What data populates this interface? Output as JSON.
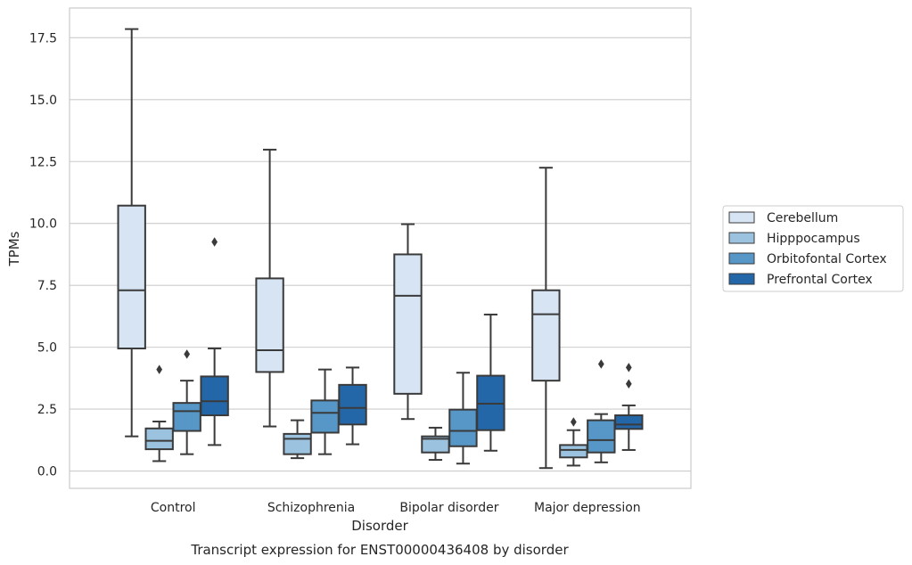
{
  "chart_data": {
    "type": "box",
    "title": "",
    "caption": "Transcript expression for ENST00000436408 by disorder",
    "xlabel": "Disorder",
    "ylabel": "TPMs",
    "ylim": [
      -0.7,
      18.7
    ],
    "yticks": [
      0.0,
      2.5,
      5.0,
      7.5,
      10.0,
      12.5,
      15.0,
      17.5
    ],
    "ytick_labels": [
      "0.0",
      "2.5",
      "5.0",
      "7.5",
      "10.0",
      "12.5",
      "15.0",
      "17.5"
    ],
    "grid": "horizontal",
    "legend_position": "right",
    "categories": [
      "Control",
      "Schizophrenia",
      "Bipolar disorder",
      "Major depression"
    ],
    "series": [
      {
        "name": "Cerebellum",
        "color": "#d6e4f3",
        "boxes": [
          {
            "whisker_low": 1.4,
            "q1": 4.95,
            "median": 7.3,
            "q3": 10.72,
            "whisker_high": 17.85,
            "outliers": []
          },
          {
            "whisker_low": 1.8,
            "q1": 4.0,
            "median": 4.88,
            "q3": 7.78,
            "whisker_high": 12.98,
            "outliers": []
          },
          {
            "whisker_low": 2.1,
            "q1": 3.12,
            "median": 7.08,
            "q3": 8.75,
            "whisker_high": 9.97,
            "outliers": []
          },
          {
            "whisker_low": 0.12,
            "q1": 3.65,
            "median": 6.33,
            "q3": 7.3,
            "whisker_high": 12.25,
            "outliers": []
          }
        ]
      },
      {
        "name": "Hipppocampus",
        "color": "#9bc3df",
        "boxes": [
          {
            "whisker_low": 0.4,
            "q1": 0.88,
            "median": 1.22,
            "q3": 1.72,
            "whisker_high": 2.0,
            "outliers": [
              4.1
            ]
          },
          {
            "whisker_low": 0.52,
            "q1": 0.68,
            "median": 1.3,
            "q3": 1.5,
            "whisker_high": 2.05,
            "outliers": []
          },
          {
            "whisker_low": 0.45,
            "q1": 0.75,
            "median": 1.3,
            "q3": 1.4,
            "whisker_high": 1.75,
            "outliers": []
          },
          {
            "whisker_low": 0.22,
            "q1": 0.55,
            "median": 0.85,
            "q3": 1.05,
            "whisker_high": 1.65,
            "outliers": [
              1.98
            ]
          }
        ]
      },
      {
        "name": "Orbitofontal Cortex",
        "color": "#5697c8",
        "boxes": [
          {
            "whisker_low": 0.68,
            "q1": 1.62,
            "median": 2.42,
            "q3": 2.75,
            "whisker_high": 3.65,
            "outliers": [
              4.72
            ]
          },
          {
            "whisker_low": 0.68,
            "q1": 1.55,
            "median": 2.35,
            "q3": 2.85,
            "whisker_high": 4.1,
            "outliers": []
          },
          {
            "whisker_low": 0.3,
            "q1": 1.0,
            "median": 1.62,
            "q3": 2.48,
            "whisker_high": 3.97,
            "outliers": []
          },
          {
            "whisker_low": 0.35,
            "q1": 0.75,
            "median": 1.25,
            "q3": 2.05,
            "whisker_high": 2.3,
            "outliers": [
              4.32
            ]
          }
        ]
      },
      {
        "name": "Prefrontal Cortex",
        "color": "#2467a9",
        "boxes": [
          {
            "whisker_low": 1.05,
            "q1": 2.25,
            "median": 2.82,
            "q3": 3.82,
            "whisker_high": 4.95,
            "outliers": [
              9.25
            ]
          },
          {
            "whisker_low": 1.08,
            "q1": 1.88,
            "median": 2.55,
            "q3": 3.48,
            "whisker_high": 4.18,
            "outliers": []
          },
          {
            "whisker_low": 0.82,
            "q1": 1.65,
            "median": 2.72,
            "q3": 3.85,
            "whisker_high": 6.32,
            "outliers": []
          },
          {
            "whisker_low": 0.85,
            "q1": 1.7,
            "median": 1.88,
            "q3": 2.25,
            "whisker_high": 2.65,
            "outliers": [
              3.52,
              4.18
            ]
          }
        ]
      }
    ]
  }
}
